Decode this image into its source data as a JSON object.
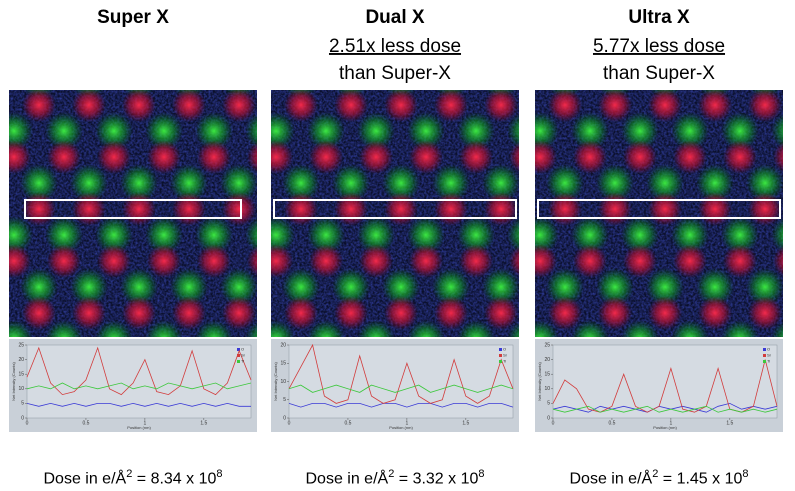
{
  "panels": [
    {
      "title": "Super X",
      "caption": {
        "text": "Dose in e/Å",
        "sup1": "2",
        "value": " = 8.34 x 10",
        "sup2": "8"
      },
      "plot": {
        "type": "line",
        "x_label": "Position (nm)",
        "y_label": "Net Intensity (Counts)",
        "x": [
          0,
          0.1,
          0.2,
          0.3,
          0.4,
          0.5,
          0.6,
          0.7,
          0.8,
          0.9,
          1,
          1.1,
          1.2,
          1.3,
          1.4,
          1.5,
          1.6,
          1.7,
          1.8,
          1.9
        ],
        "xlim": [
          0,
          1.9
        ],
        "xticks": [
          0,
          0.5,
          1,
          1.5
        ],
        "ylim": [
          0,
          25
        ],
        "yticks": [
          0,
          5,
          10,
          15,
          20,
          25
        ],
        "series": [
          {
            "name": "O",
            "color": "#3b3bd6",
            "values": [
              5,
              4,
              5,
              4,
              5,
              4,
              5,
              5,
              4,
              5,
              4,
              5,
              4,
              5,
              4,
              5,
              4,
              5,
              4,
              4
            ]
          },
          {
            "name": "Sr",
            "color": "#d23c3c",
            "values": [
              14,
              24,
              12,
              8,
              9,
              13,
              24,
              10,
              8,
              12,
              20,
              9,
              8,
              11,
              23,
              10,
              8,
              12,
              23,
              13
            ]
          },
          {
            "name": "Ti",
            "color": "#3cc83c",
            "values": [
              10,
              11,
              10,
              12,
              10,
              11,
              10,
              11,
              12,
              10,
              11,
              10,
              12,
              11,
              10,
              11,
              12,
              10,
              11,
              12
            ]
          }
        ]
      }
    },
    {
      "title": "Dual X",
      "subtitle1": "2.51x less dose",
      "subtitle2": "than Super-X",
      "caption": {
        "text": "Dose in e/Å",
        "sup1": "2",
        "value": " = 3.32 x 10",
        "sup2": "8"
      },
      "plot": {
        "type": "line",
        "x_label": "Position (nm)",
        "y_label": "Net Intensity (Counts)",
        "x": [
          0,
          0.1,
          0.2,
          0.3,
          0.4,
          0.5,
          0.6,
          0.7,
          0.8,
          0.9,
          1,
          1.1,
          1.2,
          1.3,
          1.4,
          1.5,
          1.6,
          1.7,
          1.8,
          1.9
        ],
        "xlim": [
          0,
          1.9
        ],
        "xticks": [
          0,
          0.5,
          1,
          1.5
        ],
        "ylim": [
          0,
          20
        ],
        "yticks": [
          0,
          5,
          10,
          15,
          20
        ],
        "series": [
          {
            "name": "O",
            "color": "#3b3bd6",
            "values": [
              4,
              3,
              4,
              4,
              3,
              4,
              4,
              3,
              4,
              4,
              3,
              4,
              4,
              3,
              4,
              4,
              3,
              4,
              4,
              3
            ]
          },
          {
            "name": "Sr",
            "color": "#d23c3c",
            "values": [
              8,
              14,
              20,
              6,
              4,
              5,
              17,
              6,
              4,
              5,
              15,
              6,
              4,
              5,
              16,
              6,
              4,
              6,
              16,
              8
            ]
          },
          {
            "name": "Ti",
            "color": "#3cc83c",
            "values": [
              8,
              9,
              7,
              8,
              9,
              8,
              7,
              9,
              8,
              7,
              8,
              9,
              7,
              8,
              9,
              8,
              7,
              8,
              9,
              8
            ]
          }
        ]
      }
    },
    {
      "title": "Ultra X",
      "subtitle1": "5.77x less dose",
      "subtitle2": "than Super-X",
      "caption": {
        "text": "Dose in e/Å",
        "sup1": "2",
        "value": " = 1.45 x 10",
        "sup2": "8"
      },
      "plot": {
        "type": "line",
        "x_label": "Position (nm)",
        "y_label": "Net Intensity (Counts)",
        "x": [
          0,
          0.1,
          0.2,
          0.3,
          0.4,
          0.5,
          0.6,
          0.7,
          0.8,
          0.9,
          1,
          1.1,
          1.2,
          1.3,
          1.4,
          1.5,
          1.6,
          1.7,
          1.8,
          1.9
        ],
        "xlim": [
          0,
          1.9
        ],
        "xticks": [
          0,
          0.5,
          1,
          1.5
        ],
        "ylim": [
          0,
          25
        ],
        "yticks": [
          0,
          5,
          10,
          15,
          20,
          25
        ],
        "series": [
          {
            "name": "O",
            "color": "#3b3bd6",
            "values": [
              3,
              4,
              3,
              2,
              4,
              3,
              4,
              3,
              2,
              4,
              3,
              4,
              3,
              2,
              4,
              5,
              3,
              4,
              3,
              4
            ]
          },
          {
            "name": "Sr",
            "color": "#d23c3c",
            "values": [
              5,
              13,
              10,
              3,
              2,
              4,
              15,
              4,
              2,
              4,
              17,
              3,
              2,
              4,
              17,
              3,
              2,
              4,
              20,
              4
            ]
          },
          {
            "name": "Ti",
            "color": "#3cc83c",
            "values": [
              3,
              2,
              3,
              4,
              2,
              3,
              2,
              3,
              4,
              2,
              3,
              2,
              3,
              4,
              2,
              3,
              2,
              3,
              2,
              3
            ]
          }
        ]
      }
    }
  ]
}
